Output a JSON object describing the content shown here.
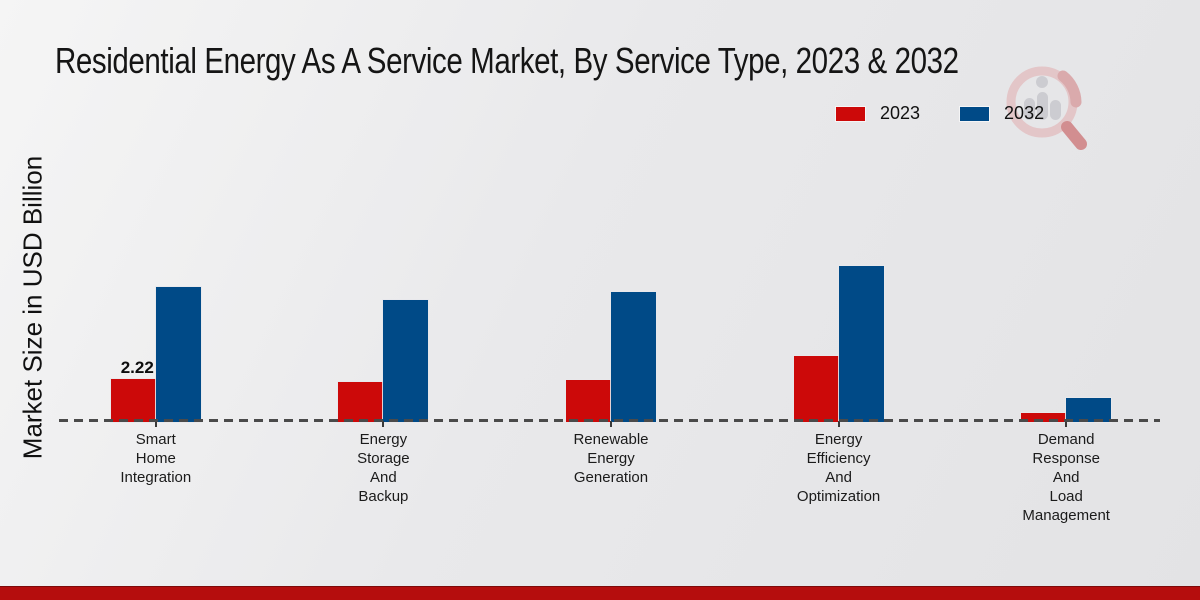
{
  "title": "Residential Energy As A Service Market, By Service Type, 2023 & 2032",
  "y_axis_label": "Market Size in USD Billion",
  "icons": {
    "watermark": "bar-chart-magnifier-logo"
  },
  "colors": {
    "series_2023": "#cc0909",
    "series_2032": "#004a87",
    "baseline": "#4a4a4a",
    "footer_stripe": "#b50d0d"
  },
  "annotation": {
    "value": "2.22",
    "series": "2023",
    "category": "Smart Home Integration"
  },
  "chart_data": {
    "type": "bar",
    "categories": [
      "Smart Home Integration",
      "Energy Storage And Backup",
      "Renewable Energy Generation",
      "Energy Efficiency And Optimization",
      "Demand Response And Load Management"
    ],
    "series": [
      {
        "name": "2023",
        "color": "#cc0909",
        "values": [
          2.22,
          2.07,
          2.17,
          3.41,
          0.46
        ]
      },
      {
        "name": "2032",
        "color": "#004a87",
        "values": [
          6.97,
          6.3,
          6.71,
          8.05,
          1.24
        ]
      }
    ],
    "data_labels": [
      "2.22",
      "",
      "",
      "",
      ""
    ],
    "title": "Residential Energy As A Service Market, By Service Type, 2023 & 2032",
    "xlabel": "",
    "ylabel": "Market Size in USD Billion",
    "ylim": [
      0,
      9.3
    ],
    "grid": false,
    "baseline_style": "dashed",
    "legend_position": "top-right"
  }
}
